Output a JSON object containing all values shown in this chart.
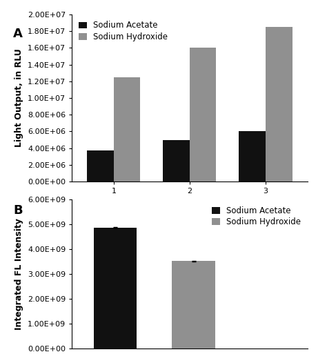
{
  "panel_A": {
    "groups": [
      1,
      2,
      3
    ],
    "sodium_acetate": [
      3700000.0,
      5000000.0,
      6000000.0
    ],
    "sodium_hydroxide": [
      12500000.0,
      16000000.0,
      18500000.0
    ],
    "ylim": [
      0,
      20000000.0
    ],
    "yticks": [
      0,
      2000000.0,
      4000000.0,
      6000000.0,
      8000000.0,
      10000000.0,
      12000000.0,
      14000000.0,
      16000000.0,
      18000000.0,
      20000000.0
    ],
    "ytick_labels": [
      "0.00E+00",
      "2.00E+06",
      "4.00E+06",
      "6.00E+06",
      "8.00E+06",
      "1.00E+07",
      "1.20E+07",
      "1.40E+07",
      "1.60E+07",
      "1.80E+07",
      "2.00E+07"
    ],
    "ylabel": "Light Output, in RLU",
    "bar_width": 0.35,
    "color_acetate": "#111111",
    "color_hydroxide": "#909090",
    "label_A": "A"
  },
  "panel_B": {
    "categories": [
      "Sodium Acetate",
      "Sodium Hydroxide"
    ],
    "values": [
      4880000000.0,
      3520000000.0
    ],
    "errors": [
      25000000.0,
      18000000.0
    ],
    "ylim": [
      0,
      6000000000.0
    ],
    "yticks": [
      0,
      1000000000.0,
      2000000000.0,
      3000000000.0,
      4000000000.0,
      5000000000.0,
      6000000000.0
    ],
    "ytick_labels": [
      "0.00E+00",
      "1.00E+09",
      "2.00E+09",
      "3.00E+09",
      "4.00E+09",
      "5.00E+09",
      "6.00E+09"
    ],
    "ylabel": "Integrated FL Intensity",
    "bar_width": 0.55,
    "color_acetate": "#111111",
    "color_hydroxide": "#909090",
    "label_B": "B",
    "legend_labels": [
      "Sodium Acetate",
      "Sodium Hydroxide"
    ]
  },
  "legend_A": {
    "labels": [
      "Sodium Acetate",
      "Sodium Hydroxide"
    ],
    "colors": [
      "#111111",
      "#909090"
    ]
  },
  "font_size": 8.5,
  "tick_font_size": 8,
  "label_font_size": 9,
  "panel_label_fontsize": 13
}
